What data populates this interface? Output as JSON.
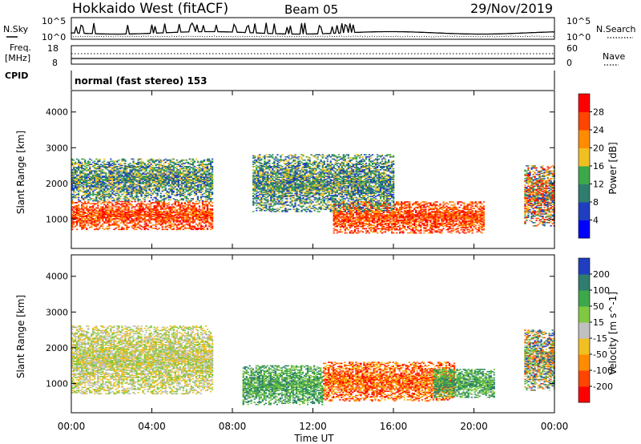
{
  "header": {
    "radar": "Hokkaido West (fitACF)",
    "beam": "Beam 05",
    "date": "29/Nov/2019"
  },
  "noise_panel": {
    "left_label": "N.Sky",
    "right_label": "N.Search",
    "tick_top": "10^5",
    "tick_bottom": "10^0"
  },
  "freq_panel": {
    "left_label_1": "Freq.",
    "left_label_2": "[MHz]",
    "tick_top": "18",
    "tick_bottom": "8",
    "right_label": "Nave",
    "right_tick_top": "60",
    "right_tick_bottom": "0"
  },
  "cpid_panel": {
    "label": "CPID",
    "text": "normal (fast stereo) 153"
  },
  "chart_data": [
    {
      "type": "heatmap",
      "title": "",
      "xlabel": "Time UT",
      "ylabel": "Slant Range [km]",
      "x_ticks": [
        "00:00",
        "04:00",
        "08:00",
        "12:00",
        "16:00",
        "20:00",
        "00:00"
      ],
      "y_ticks": [
        "1000",
        "2000",
        "3000",
        "4000"
      ],
      "xlim": [
        0,
        24
      ],
      "ylim": [
        180,
        4600
      ],
      "colorbar": {
        "label": "Power [dB]",
        "ticks": [
          "28",
          "24",
          "20",
          "16",
          "12",
          "8",
          "4"
        ],
        "range": [
          0,
          32
        ],
        "colors": [
          "#0000ff",
          "#1f3fc0",
          "#2e7d6f",
          "#3ca84a",
          "#f0c020",
          "#ff8c00",
          "#ff4500",
          "#ff0000"
        ]
      },
      "regions": [
        {
          "t": [
            0.0,
            7.0
          ],
          "r": [
            700,
            1500
          ],
          "level": "high"
        },
        {
          "t": [
            0.0,
            7.0
          ],
          "r": [
            1500,
            2700
          ],
          "level": "low"
        },
        {
          "t": [
            13.0,
            20.5
          ],
          "r": [
            600,
            1500
          ],
          "level": "high"
        },
        {
          "t": [
            9.0,
            16.0
          ],
          "r": [
            1200,
            2800
          ],
          "level": "low"
        },
        {
          "t": [
            22.5,
            24.0
          ],
          "r": [
            800,
            2500
          ],
          "level": "mixed"
        }
      ]
    },
    {
      "type": "heatmap",
      "title": "",
      "xlabel": "Time UT",
      "ylabel": "Slant Range [km]",
      "x_ticks": [
        "00:00",
        "04:00",
        "08:00",
        "12:00",
        "16:00",
        "20:00",
        "00:00"
      ],
      "y_ticks": [
        "1000",
        "2000",
        "3000",
        "4000"
      ],
      "xlim": [
        0,
        24
      ],
      "ylim": [
        180,
        4600
      ],
      "colorbar": {
        "label": "Velocity [m s^-1]",
        "ticks": [
          "200",
          "100",
          "50",
          "15",
          "-15",
          "-50",
          "-100",
          "-200"
        ],
        "range": [
          -250,
          250
        ],
        "colors": [
          "#ff0000",
          "#ff4500",
          "#ff8c00",
          "#f0c020",
          "#c0c0c0",
          "#80c840",
          "#3ca84a",
          "#2e7d6f",
          "#1f3fc0"
        ]
      },
      "regions": [
        {
          "t": [
            0.0,
            7.0
          ],
          "r": [
            700,
            2600
          ],
          "level": "near-zero"
        },
        {
          "t": [
            8.5,
            12.5
          ],
          "r": [
            400,
            1500
          ],
          "level": "positive"
        },
        {
          "t": [
            12.5,
            19.0
          ],
          "r": [
            500,
            1600
          ],
          "level": "negative"
        },
        {
          "t": [
            18.0,
            21.0
          ],
          "r": [
            600,
            1400
          ],
          "level": "positive"
        },
        {
          "t": [
            22.5,
            24.0
          ],
          "r": [
            800,
            2500
          ],
          "level": "mixed"
        }
      ]
    }
  ]
}
